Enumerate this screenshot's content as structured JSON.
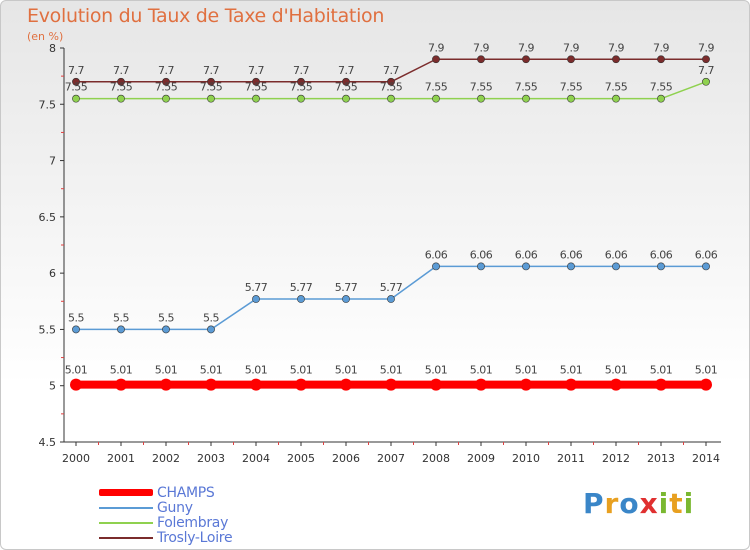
{
  "header": {
    "title": "Evolution du Taux de Taxe d'Habitation",
    "unit": "(en %)"
  },
  "chart_data": {
    "type": "line",
    "title": "Evolution du Taux de Taxe d'Habitation",
    "ylabel": "(en %)",
    "xlabel": "",
    "x": [
      "2000",
      "2001",
      "2002",
      "2003",
      "2004",
      "2005",
      "2006",
      "2007",
      "2008",
      "2009",
      "2010",
      "2011",
      "2012",
      "2013",
      "2014"
    ],
    "ylim": [
      4.5,
      8
    ],
    "yticks": [
      "4.5",
      "5",
      "5.5",
      "6",
      "6.5",
      "7",
      "7.5",
      "8"
    ],
    "grid": false,
    "legend_position": "bottom-left",
    "series": [
      {
        "name": "CHAMPS",
        "color": "#ff0000",
        "values": [
          5.01,
          5.01,
          5.01,
          5.01,
          5.01,
          5.01,
          5.01,
          5.01,
          5.01,
          5.01,
          5.01,
          5.01,
          5.01,
          5.01,
          5.01
        ],
        "labels": [
          "5.01",
          "5.01",
          "5.01",
          "5.01",
          "5.01",
          "5.01",
          "5.01",
          "5.01",
          "5.01",
          "5.01",
          "5.01",
          "5.01",
          "5.01",
          "5.01",
          "5.01"
        ]
      },
      {
        "name": "Guny",
        "color": "#5b9bd5",
        "values": [
          5.5,
          5.5,
          5.5,
          5.5,
          5.77,
          5.77,
          5.77,
          5.77,
          6.06,
          6.06,
          6.06,
          6.06,
          6.06,
          6.06,
          6.06
        ],
        "labels": [
          "5.5",
          "5.5",
          "5.5",
          "5.5",
          "5.77",
          "5.77",
          "5.77",
          "5.77",
          "6.06",
          "6.06",
          "6.06",
          "6.06",
          "6.06",
          "6.06",
          "6.06"
        ]
      },
      {
        "name": "Folembray",
        "color": "#8fd14f",
        "values": [
          7.55,
          7.55,
          7.55,
          7.55,
          7.55,
          7.55,
          7.55,
          7.55,
          7.55,
          7.55,
          7.55,
          7.55,
          7.55,
          7.55,
          7.7
        ],
        "labels": [
          "7.55",
          "7.55",
          "7.55",
          "7.55",
          "7.55",
          "7.55",
          "7.55",
          "7.55",
          "7.55",
          "7.55",
          "7.55",
          "7.55",
          "7.55",
          "7.55",
          "7.7"
        ]
      },
      {
        "name": "Trosly-Loire",
        "color": "#7b2c2c",
        "values": [
          7.7,
          7.7,
          7.7,
          7.7,
          7.7,
          7.7,
          7.7,
          7.7,
          7.9,
          7.9,
          7.9,
          7.9,
          7.9,
          7.9,
          7.9
        ],
        "labels": [
          "7.7",
          "7.7",
          "7.7",
          "7.7",
          "7.7",
          "7.7",
          "7.7",
          "7.7",
          "7.9",
          "7.9",
          "7.9",
          "7.9",
          "7.9",
          "7.9",
          "7.9"
        ]
      }
    ]
  },
  "legend": {
    "items": [
      {
        "label": "CHAMPS",
        "color": "#ff0000"
      },
      {
        "label": "Guny",
        "color": "#5b9bd5"
      },
      {
        "label": "Folembray",
        "color": "#8fd14f"
      },
      {
        "label": "Trosly-Loire",
        "color": "#7b2c2c"
      }
    ]
  },
  "logo": {
    "text": "Proxiti",
    "letters": [
      {
        "ch": "P",
        "color": "#3a86c8"
      },
      {
        "ch": "r",
        "color": "#e8a020"
      },
      {
        "ch": "o",
        "color": "#3a86c8"
      },
      {
        "ch": "x",
        "color": "#e03030"
      },
      {
        "ch": "i",
        "color": "#7ab830"
      },
      {
        "ch": "t",
        "color": "#e8a020"
      },
      {
        "ch": "i",
        "color": "#7ab830"
      }
    ]
  }
}
